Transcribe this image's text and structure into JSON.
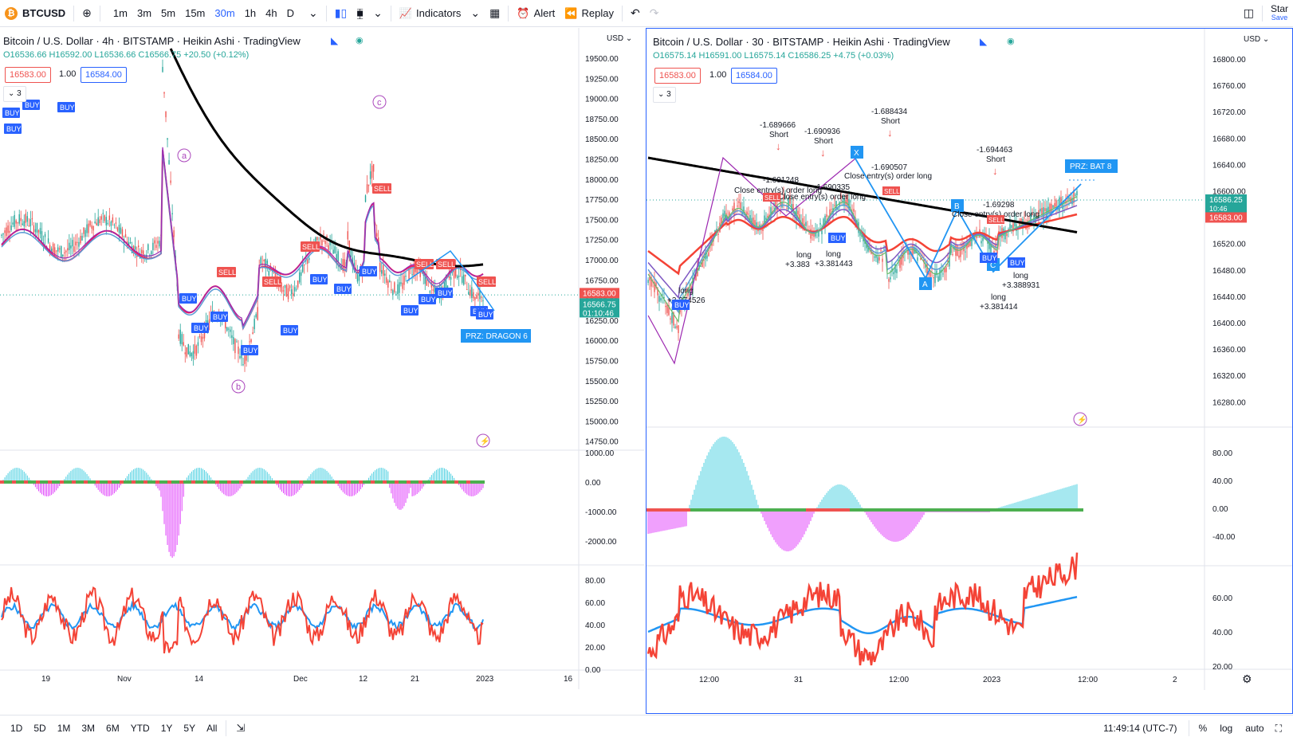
{
  "toolbar": {
    "symbol": "BTCUSD",
    "symbol_icon": "bitcoin-icon",
    "intervals": [
      "1m",
      "3m",
      "5m",
      "15m",
      "30m",
      "1h",
      "4h",
      "D"
    ],
    "active_interval": "30m",
    "indicators_label": "Indicators",
    "alert_label": "Alert",
    "replay_label": "Replay",
    "start_label": "Star",
    "save_label": "Save"
  },
  "left_chart": {
    "title": "Bitcoin / U.S. Dollar · 4h · BITSTAMP · Heikin Ashi · TradingView",
    "ohlc": "O16536.66 H16592.00 L16536.66 C16566.75 +20.50 (+0.12%)",
    "sell_price": "16583.00",
    "qty": "1.00",
    "buy_price": "16584.00",
    "collapse": "3",
    "currency": "USD",
    "price_ticks": [
      "19500.00",
      "19250.00",
      "19000.00",
      "18750.00",
      "18500.00",
      "18250.00",
      "18000.00",
      "17750.00",
      "17500.00",
      "17250.00",
      "17000.00",
      "16750.00",
      "16500.00",
      "16250.00",
      "16000.00",
      "15750.00",
      "15500.00",
      "15250.00",
      "15000.00",
      "14750.00"
    ],
    "price_tag_red": "16583.00",
    "price_tag_green": "16566.75",
    "countdown": "01:10:46",
    "macd_ticks": [
      "1000.00",
      "0.00",
      "-1000.00",
      "-2000.00"
    ],
    "rsi_ticks": [
      "80.00",
      "60.00",
      "40.00",
      "20.00",
      "0.00"
    ],
    "time_ticks": [
      "19",
      "Nov",
      "14",
      "Dec",
      "12",
      "21",
      "2023",
      "16"
    ],
    "wave_labels": [
      "a",
      "b",
      "c"
    ],
    "prz_label": "PRZ: DRAGON 6",
    "buy_label": "BUY",
    "sell_label": "SELL"
  },
  "right_chart": {
    "title": "Bitcoin / U.S. Dollar · 30 · BITSTAMP · Heikin Ashi · TradingView",
    "ohlc": "O16575.14 H16591.00 L16575.14 C16586.25 +4.75 (+0.03%)",
    "sell_price": "16583.00",
    "qty": "1.00",
    "buy_price": "16584.00",
    "collapse": "3",
    "currency": "USD",
    "price_ticks": [
      "16800.00",
      "16760.00",
      "16720.00",
      "16680.00",
      "16640.00",
      "16600.00",
      "16560.00",
      "16520.00",
      "16480.00",
      "16440.00",
      "16400.00",
      "16360.00",
      "16320.00",
      "16280.00"
    ],
    "price_tag_green": "16586.25",
    "countdown": "10:46",
    "price_tag_red": "16583.00",
    "macd_ticks": [
      "80.00",
      "40.00",
      "0.00",
      "-40.00"
    ],
    "rsi_ticks": [
      "60.00",
      "40.00",
      "20.00"
    ],
    "time_ticks": [
      "12:00",
      "31",
      "12:00",
      "2023",
      "12:00",
      "2"
    ],
    "prz_label": "PRZ: BAT 8",
    "harmonic_labels": [
      "X",
      "A",
      "B",
      "C"
    ],
    "annotations": [
      {
        "t1": "-1.689666",
        "t2": "Short"
      },
      {
        "t1": "-1.690936",
        "t2": "Short"
      },
      {
        "t1": "-1.688434",
        "t2": "Short"
      },
      {
        "t1": "-1.694463",
        "t2": "Short"
      }
    ],
    "close_long": "Close entry(s) order long",
    "close_long_2": "Close entry(s) order long",
    "close_long_3": "Close entry(s) order long",
    "long_labels": [
      {
        "t1": "long",
        "t2": "+3.374526"
      },
      {
        "t1": "long",
        "t2": "+3.383"
      },
      {
        "t1": "long",
        "t2": "+3.381443"
      },
      {
        "t1": "long",
        "t2": "+3.388931"
      },
      {
        "t1": "long",
        "t2": "+3.381414"
      }
    ],
    "misc_vals": [
      "-1.691248",
      "-1.690335",
      "-1.690507",
      "-1.69298"
    ]
  },
  "bottombar": {
    "ranges": [
      "1D",
      "5D",
      "1M",
      "3M",
      "6M",
      "YTD",
      "1Y",
      "5Y",
      "All"
    ],
    "clock": "11:49:14 (UTC-7)",
    "pct": "%",
    "log": "log",
    "auto": "auto"
  },
  "colors": {
    "bull": "#26a69a",
    "bear": "#ef5350",
    "accent": "#2962ff",
    "tag_blue": "#2196f3"
  }
}
